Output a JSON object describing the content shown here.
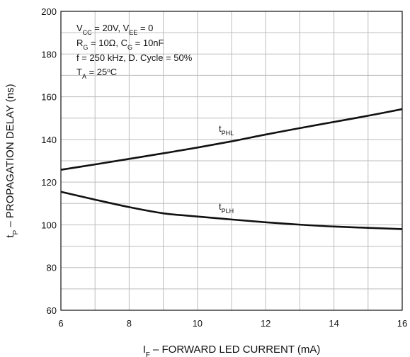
{
  "chart_data": {
    "type": "line",
    "xlabel_main": "I",
    "xlabel_sub": "F",
    "xlabel_rest": " – FORWARD LED CURRENT (mA)",
    "ylabel_main": "t",
    "ylabel_sub": "P",
    "ylabel_rest": " – PROPAGATION DELAY (ns)",
    "xlim": [
      6,
      16
    ],
    "ylim": [
      60,
      200
    ],
    "xticks": [
      "6",
      "8",
      "10",
      "12",
      "14",
      "16"
    ],
    "yticks": [
      "60",
      "80",
      "100",
      "120",
      "140",
      "160",
      "180",
      "200"
    ],
    "grid": true,
    "conditions": {
      "line1": {
        "a_main": "V",
        "a_sub": "CC",
        "a_rest": " = 20V, V",
        "b_sub": "EE",
        "b_rest": " = 0"
      },
      "line2": {
        "a_main": "R",
        "a_sub": "G",
        "a_rest": " = 10Ω, C",
        "b_sub": "G",
        "b_rest": " = 10nF"
      },
      "line3": "f = 250 kHz, D. Cycle = 50%",
      "line4": {
        "a_main": "T",
        "a_sub": "A",
        "a_rest": " = 25",
        "deg": "o",
        "unit": "C"
      }
    },
    "series": [
      {
        "name_main": "t",
        "name_sub": "PHL",
        "x": [
          6,
          7,
          8,
          9,
          10,
          11,
          12,
          13,
          14,
          15,
          16
        ],
        "y": [
          125.8,
          128.3,
          130.9,
          133.5,
          136.2,
          139.1,
          142.3,
          145.3,
          148.2,
          151.1,
          154.2
        ]
      },
      {
        "name_main": "t",
        "name_sub": "PLH",
        "x": [
          6,
          7,
          8,
          9,
          10,
          11,
          12,
          13,
          14,
          15,
          16
        ],
        "y": [
          115.5,
          111.8,
          108.3,
          105.4,
          103.9,
          102.5,
          101.2,
          100.1,
          99.2,
          98.6,
          98.0
        ]
      }
    ]
  }
}
